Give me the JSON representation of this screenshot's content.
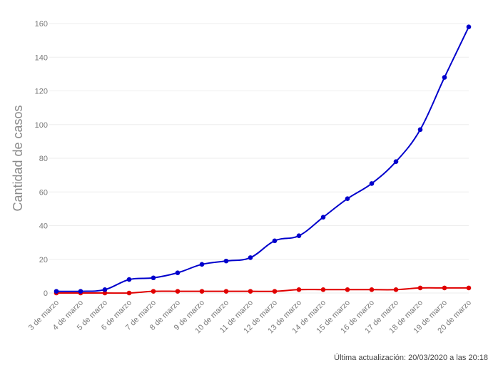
{
  "chart_data": {
    "type": "line",
    "title": "",
    "xlabel": "",
    "ylabel": "Cantidad de casos",
    "ylim": [
      0,
      160
    ],
    "yticks": [
      0,
      20,
      40,
      60,
      80,
      100,
      120,
      140,
      160
    ],
    "grid": true,
    "categories": [
      "3 de marzo",
      "4 de marzo",
      "5 de marzo",
      "6 de marzo",
      "7 de marzo",
      "8 de marzo",
      "9 de marzo",
      "10 de marzo",
      "11 de marzo",
      "12 de marzo",
      "13 de marzo",
      "14 de marzo",
      "15 de marzo",
      "16 de marzo",
      "17 de marzo",
      "18 de marzo",
      "19 de marzo",
      "20 de marzo"
    ],
    "series": [
      {
        "color": "#0000cc",
        "values": [
          1,
          1,
          2,
          8,
          9,
          12,
          17,
          19,
          21,
          31,
          34,
          45,
          56,
          65,
          78,
          97,
          128,
          158
        ]
      },
      {
        "color": "#e00000",
        "values": [
          0,
          0,
          0,
          0,
          1,
          1,
          1,
          1,
          1,
          1,
          2,
          2,
          2,
          2,
          2,
          3,
          3,
          3
        ]
      }
    ]
  },
  "footnote": "Última actualización: 20/03/2020 a las 20:18"
}
